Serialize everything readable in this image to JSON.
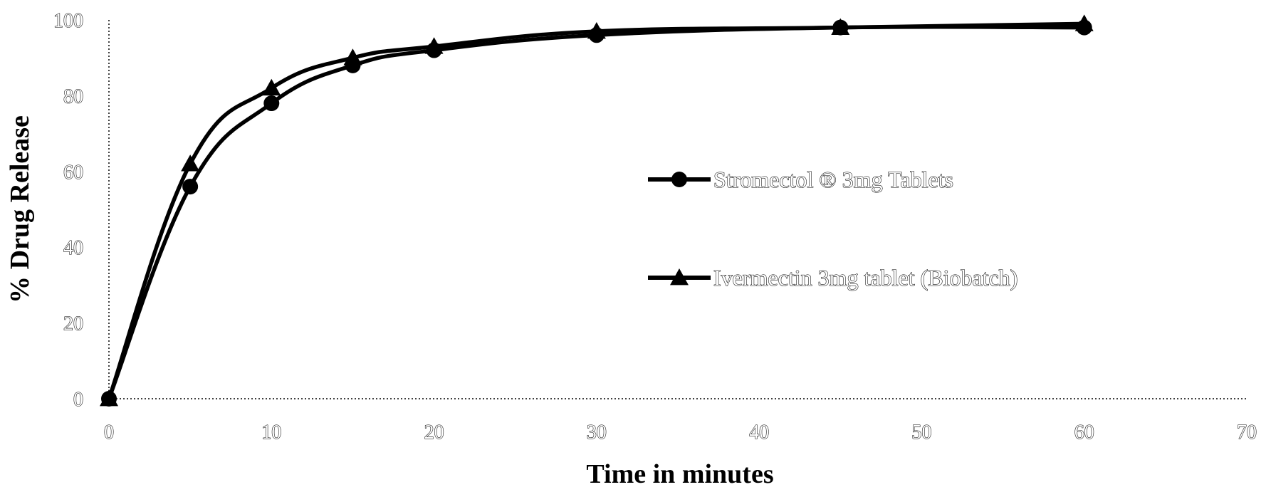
{
  "chart_data": {
    "type": "line",
    "title": "",
    "xlabel": "Time in minutes",
    "ylabel": "% Drug Release",
    "xlim": [
      0,
      70
    ],
    "ylim": [
      0,
      100
    ],
    "x_ticks": [
      "0",
      "10",
      "20",
      "30",
      "40",
      "50",
      "60",
      "70"
    ],
    "y_ticks": [
      "0",
      "20",
      "40",
      "60",
      "80",
      "100"
    ],
    "grid": false,
    "legend_position": "center-right",
    "series": [
      {
        "name": "Stromectol ® 3mg Tablets",
        "marker": "circle",
        "x": [
          0,
          5,
          10,
          15,
          20,
          30,
          45,
          60
        ],
        "values": [
          0,
          56,
          78,
          88,
          92,
          96,
          98,
          98
        ]
      },
      {
        "name": "Ivermectin 3mg tablet (Biobatch)",
        "marker": "triangle",
        "x": [
          0,
          5,
          10,
          15,
          20,
          30,
          45,
          60
        ],
        "values": [
          0,
          62,
          82,
          90,
          93,
          97,
          98,
          99
        ]
      }
    ],
    "colors": {
      "line": "#000000",
      "background": "#ffffff"
    }
  }
}
